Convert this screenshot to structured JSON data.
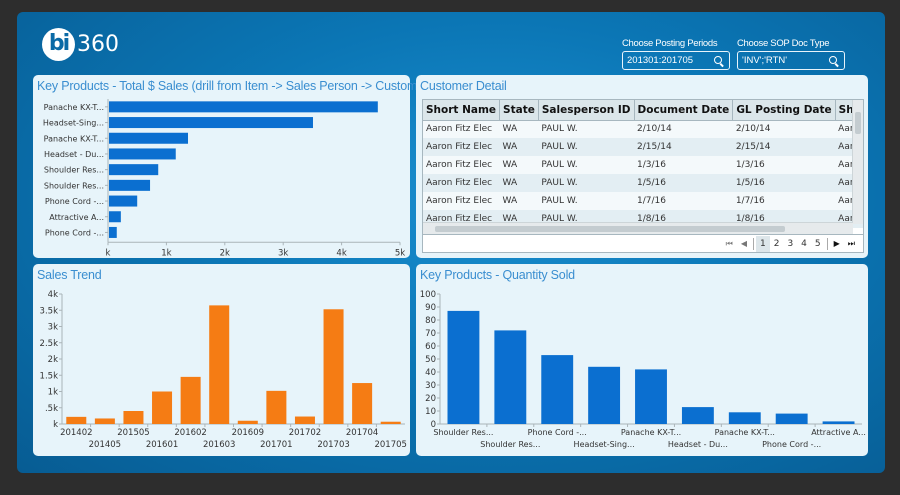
{
  "app": {
    "logo_mark": "bi",
    "logo_text": "360"
  },
  "filters": [
    {
      "label": "Choose Posting Periods",
      "value": "201301:201705",
      "icon": "search-icon"
    },
    {
      "label": "Choose SOP Doc Type",
      "value": "'INV';'RTN'",
      "icon": "search-icon"
    }
  ],
  "panels": {
    "key_products_sales": {
      "title": "Key Products - Total $ Sales  (drill from Item -> Sales Person -> Customer)"
    },
    "customer_detail": {
      "title": "Customer Detail"
    },
    "sales_trend": {
      "title": "Sales Trend"
    },
    "key_products_qty": {
      "title": "Key Products - Quantity Sold"
    }
  },
  "customer_detail": {
    "columns": [
      "Short Name",
      "State",
      "Salesperson ID",
      "Document Date",
      "GL Posting Date",
      "ShipTo"
    ],
    "rows": [
      [
        "Aaron Fitz Elec",
        "WA",
        "PAUL W.",
        "2/10/14",
        "2/10/14",
        "Aaron F"
      ],
      [
        "Aaron Fitz Elec",
        "WA",
        "PAUL W.",
        "2/15/14",
        "2/15/14",
        "Aaron F"
      ],
      [
        "Aaron Fitz Elec",
        "WA",
        "PAUL W.",
        "1/3/16",
        "1/3/16",
        "Aaron F"
      ],
      [
        "Aaron Fitz Elec",
        "WA",
        "PAUL W.",
        "1/5/16",
        "1/5/16",
        "Aaron F"
      ],
      [
        "Aaron Fitz Elec",
        "WA",
        "PAUL W.",
        "1/7/16",
        "1/7/16",
        "Aaron F"
      ],
      [
        "Aaron Fitz Elec",
        "WA",
        "PAUL W.",
        "1/8/16",
        "1/8/16",
        "Aaron F"
      ]
    ],
    "pager": {
      "first": "⏮",
      "prev": "◀",
      "pages": [
        "1",
        "2",
        "3",
        "4",
        "5"
      ],
      "current_page": "1",
      "next": "▶",
      "last": "⏭"
    }
  },
  "colors": {
    "blue_bar": "#0b6fd0",
    "orange_bar": "#f57c14",
    "title": "#3a8ed0"
  },
  "chart_data": [
    {
      "id": "key_products_sales",
      "type": "bar",
      "orientation": "horizontal",
      "title": "Key Products - Total $ Sales  (drill from Item -> Sales Person -> Customer)",
      "categories": [
        "Panache KX-T...",
        "Headset-Sing...",
        "Panache KX-T...",
        "Headset - Du...",
        "Shoulder Res...",
        "Shoulder Res...",
        "Phone Cord -...",
        "Attractive A...",
        "Phone Cord -..."
      ],
      "values": [
        4620,
        3510,
        1370,
        1160,
        860,
        720,
        500,
        220,
        150
      ],
      "xlim": [
        0,
        5000
      ],
      "ticks": [
        0,
        1000,
        2000,
        3000,
        4000,
        5000
      ],
      "tick_labels": [
        "k",
        "1k",
        "2k",
        "3k",
        "4k",
        "5k"
      ],
      "color": "#0b6fd0"
    },
    {
      "id": "sales_trend",
      "type": "bar",
      "title": "Sales Trend",
      "categories": [
        "201402",
        "201405",
        "201505",
        "201601",
        "201602",
        "201603",
        "201609",
        "201701",
        "201702",
        "201703",
        "201704",
        "201705"
      ],
      "values": [
        220,
        170,
        400,
        1000,
        1450,
        3650,
        100,
        1020,
        230,
        3530,
        1260,
        70
      ],
      "ylim": [
        0,
        4000
      ],
      "ticks": [
        0,
        500,
        1000,
        1500,
        2000,
        2500,
        3000,
        3500,
        4000
      ],
      "tick_labels": [
        "k",
        ".5k",
        "1k",
        "1.5k",
        "2k",
        "2.5k",
        "3k",
        "3.5k",
        "4k"
      ],
      "color": "#f57c14"
    },
    {
      "id": "key_products_qty",
      "type": "bar",
      "title": "Key Products - Quantity Sold",
      "categories": [
        "Shoulder Res...",
        "Shoulder Res...",
        "Phone Cord -...",
        "Headset-Sing...",
        "Panache KX-T...",
        "Headset - Du...",
        "Panache KX-T...",
        "Phone Cord -...",
        "Attractive A..."
      ],
      "values": [
        87,
        72,
        53,
        44,
        42,
        13,
        9,
        8,
        2
      ],
      "ylim": [
        0,
        100
      ],
      "ticks": [
        0,
        10,
        20,
        30,
        40,
        50,
        60,
        70,
        80,
        90,
        100
      ],
      "tick_labels": [
        "0",
        "10",
        "20",
        "30",
        "40",
        "50",
        "60",
        "70",
        "80",
        "90",
        "100"
      ],
      "color": "#0b6fd0"
    }
  ]
}
